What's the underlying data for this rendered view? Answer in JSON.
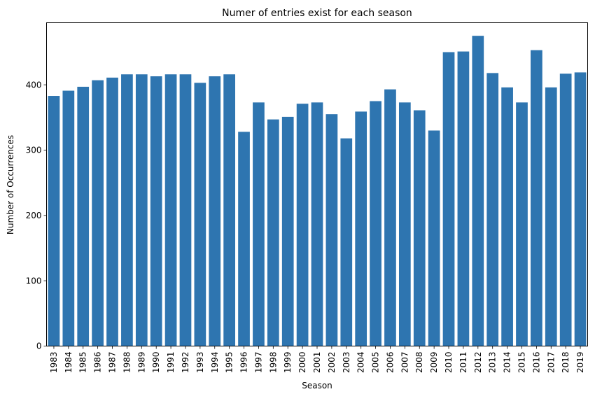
{
  "chart_data": {
    "type": "bar",
    "title": "Numer of entries exist for each season",
    "xlabel": "Season",
    "ylabel": "Number of Occurrences",
    "categories": [
      "1983",
      "1984",
      "1985",
      "1986",
      "1987",
      "1988",
      "1989",
      "1990",
      "1991",
      "1992",
      "1993",
      "1994",
      "1995",
      "1996",
      "1997",
      "1998",
      "1999",
      "2000",
      "2001",
      "2002",
      "2003",
      "2004",
      "2005",
      "2006",
      "2007",
      "2008",
      "2009",
      "2010",
      "2011",
      "2012",
      "2013",
      "2014",
      "2015",
      "2016",
      "2017",
      "2018",
      "2019"
    ],
    "values": [
      383,
      391,
      397,
      407,
      411,
      416,
      416,
      413,
      416,
      416,
      403,
      413,
      416,
      328,
      373,
      347,
      351,
      371,
      373,
      355,
      318,
      359,
      375,
      393,
      373,
      361,
      330,
      450,
      451,
      475,
      418,
      396,
      373,
      453,
      396,
      417,
      419
    ],
    "ylim": [
      0,
      495
    ],
    "yticks": [
      0,
      100,
      200,
      300,
      400
    ],
    "bar_color": "#2e75b0",
    "grid": false,
    "legend": "none"
  }
}
